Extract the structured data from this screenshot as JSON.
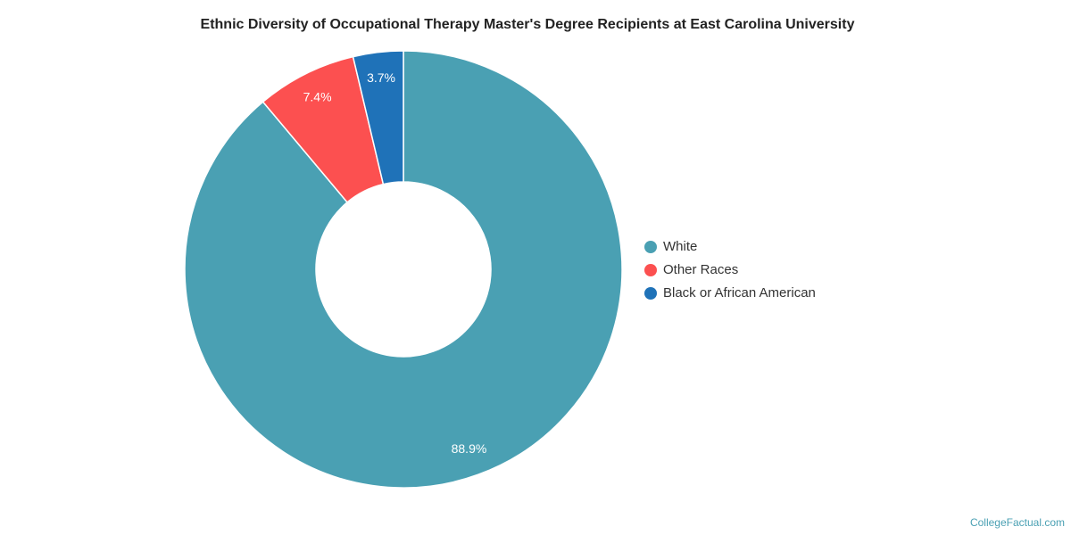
{
  "chart_data": {
    "type": "pie",
    "title": "Ethnic Diversity of Occupational Therapy Master's Degree Recipients at East Carolina University",
    "categories": [
      "White",
      "Other Races",
      "Black or African American"
    ],
    "values": [
      88.9,
      7.4,
      3.7
    ],
    "value_labels": [
      "88.9%",
      "7.4%",
      "3.7%"
    ],
    "colors": [
      "#4aa0b3",
      "#fc5050",
      "#1f72b8"
    ],
    "legend": "right",
    "source": "CollegeFactual.com"
  }
}
